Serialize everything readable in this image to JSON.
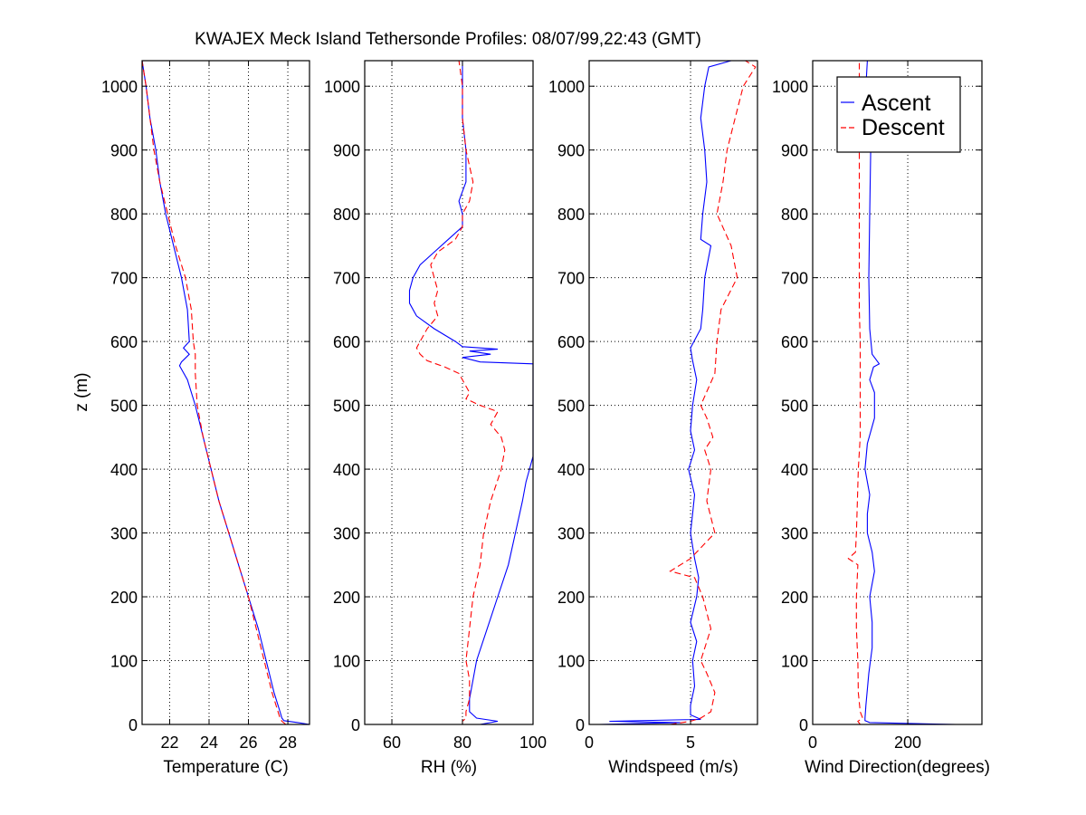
{
  "chart_data": {
    "type": "line",
    "title": "KWAJEX Meck Island Tethersonde Profiles: 08/07/99,22:43 (GMT)",
    "ylabel": "z (m)",
    "ylim": [
      0,
      1040
    ],
    "yticks": [
      0,
      100,
      200,
      300,
      400,
      500,
      600,
      700,
      800,
      900,
      1000
    ],
    "grid": true,
    "legend": {
      "placement": "top-right of last panel",
      "entries": [
        {
          "name": "Ascent",
          "color": "#0000ff",
          "style": "solid"
        },
        {
          "name": "Descent",
          "color": "#ff0000",
          "style": "dashed"
        }
      ]
    },
    "panels": [
      {
        "id": "temperature",
        "xlabel": "Temperature (C)",
        "xlim": [
          20.6,
          29.1
        ],
        "xticks": [
          22,
          24,
          26,
          28
        ],
        "series": [
          {
            "name": "Ascent",
            "color": "#0000ff",
            "style": "solid",
            "z": [
              0,
              3,
              6,
              10,
              20,
              50,
              100,
              150,
              200,
              250,
              300,
              350,
              400,
              450,
              500,
              540,
              562,
              568,
              580,
              590,
              600,
              650,
              700,
              750,
              800,
              850,
              900,
              950,
              1000,
              1040
            ],
            "values": [
              29.1,
              28.5,
              27.8,
              27.7,
              27.6,
              27.3,
              26.9,
              26.5,
              26.0,
              25.5,
              25.0,
              24.5,
              24.1,
              23.7,
              23.3,
              22.9,
              22.5,
              22.6,
              23.0,
              22.7,
              23.0,
              22.9,
              22.6,
              22.2,
              21.8,
              21.5,
              21.3,
              21.0,
              20.8,
              20.6
            ]
          },
          {
            "name": "Descent",
            "color": "#ff0000",
            "style": "dashed",
            "z": [
              0,
              5,
              10,
              20,
              50,
              100,
              150,
              200,
              250,
              300,
              350,
              400,
              450,
              500,
              550,
              580,
              600,
              650,
              700,
              750,
              800,
              850,
              900,
              950,
              1000,
              1040
            ],
            "values": [
              27.9,
              27.7,
              27.6,
              27.5,
              27.2,
              26.8,
              26.4,
              26.0,
              25.5,
              25.0,
              24.5,
              24.1,
              23.7,
              23.4,
              23.3,
              23.3,
              23.2,
              23.1,
              22.8,
              22.3,
              21.9,
              21.5,
              21.2,
              21.0,
              20.8,
              20.6
            ]
          }
        ]
      },
      {
        "id": "rh",
        "xlabel": "RH (%)",
        "xlim": [
          52.3,
          100
        ],
        "xticks": [
          60,
          80,
          100
        ],
        "series": [
          {
            "name": "Ascent",
            "color": "#0000ff",
            "style": "solid",
            "z": [
              0,
              5,
              10,
              20,
              40,
              70,
              100,
              150,
              200,
              250,
              300,
              350,
              380,
              400,
              420,
              440,
              500,
              560,
              565,
              568,
              575,
              580,
              585,
              588,
              592,
              600,
              620,
              640,
              660,
              680,
              700,
              720,
              740,
              760,
              780,
              800,
              820,
              850,
              900,
              950,
              1000,
              1040
            ],
            "values": [
              85,
              90,
              84,
              82,
              82,
              83,
              84,
              87,
              90,
              93,
              95,
              97,
              98,
              99,
              100,
              100,
              100,
              100,
              100,
              85,
              80,
              88,
              82,
              90,
              80,
              78,
              72,
              67,
              65,
              65,
              66,
              68,
              72,
              76,
              80,
              80,
              79,
              81,
              81,
              80,
              80,
              80
            ]
          },
          {
            "name": "Descent",
            "color": "#ff0000",
            "style": "dashed",
            "z": [
              0,
              5,
              10,
              20,
              40,
              70,
              100,
              150,
              200,
              250,
              300,
              350,
              400,
              430,
              450,
              470,
              490,
              500,
              510,
              520,
              530,
              540,
              550,
              560,
              570,
              580,
              590,
              600,
              620,
              640,
              660,
              680,
              700,
              720,
              740,
              760,
              780,
              800,
              820,
              850,
              900,
              950,
              1000,
              1040
            ],
            "values": [
              80,
              80,
              81,
              81,
              82,
              82,
              81,
              82,
              83,
              85,
              86,
              88,
              91,
              92,
              91,
              88,
              90,
              85,
              81,
              82,
              81,
              80,
              79,
              75,
              70,
              68,
              67,
              68,
              70,
              73,
              72,
              73,
              72,
              71,
              73,
              78,
              80,
              80,
              82,
              83,
              81,
              80,
              80,
              79
            ]
          }
        ]
      },
      {
        "id": "windspeed",
        "xlabel": "Windspeed (m/s)",
        "xlim": [
          0,
          8.3
        ],
        "xticks": [
          0,
          5
        ],
        "series": [
          {
            "name": "Ascent",
            "color": "#0000ff",
            "style": "solid",
            "z": [
              0,
              3,
              5,
              8,
              15,
              30,
              60,
              100,
              130,
              160,
              200,
              230,
              260,
              300,
              330,
              360,
              400,
              430,
              460,
              500,
              540,
              570,
              590,
              620,
              650,
              700,
              750,
              760,
              800,
              850,
              900,
              950,
              1000,
              1030,
              1040
            ],
            "values": [
              0.5,
              4.5,
              1.0,
              5.5,
              5.0,
              5.0,
              5.2,
              5.1,
              5.3,
              5.0,
              5.3,
              5.4,
              5.2,
              5.0,
              5.1,
              5.2,
              4.9,
              5.2,
              5.0,
              5.1,
              5.3,
              5.1,
              5.0,
              5.5,
              5.6,
              5.7,
              6.0,
              5.5,
              5.6,
              5.8,
              5.7,
              5.5,
              5.7,
              5.9,
              7.0
            ]
          },
          {
            "name": "Descent",
            "color": "#ff0000",
            "style": "dashed",
            "z": [
              0,
              5,
              10,
              20,
              50,
              80,
              100,
              150,
              200,
              230,
              240,
              260,
              300,
              350,
              400,
              430,
              450,
              480,
              500,
              550,
              600,
              650,
              700,
              750,
              800,
              850,
              900,
              950,
              1000,
              1030,
              1040
            ],
            "values": [
              4.0,
              5.0,
              5.5,
              6.0,
              6.2,
              5.8,
              5.5,
              6.0,
              5.6,
              5.2,
              4.0,
              5.0,
              6.2,
              5.8,
              6.0,
              5.7,
              6.1,
              5.8,
              5.5,
              6.2,
              6.3,
              6.5,
              7.3,
              7.0,
              6.3,
              6.6,
              6.8,
              7.2,
              7.6,
              8.2,
              7.7
            ]
          }
        ]
      },
      {
        "id": "wind-direction",
        "xlabel": "Wind Direction(degrees)",
        "xlim": [
          0,
          356
        ],
        "xticks": [
          0,
          200
        ],
        "series": [
          {
            "name": "Ascent",
            "color": "#0000ff",
            "style": "solid",
            "z": [
              0,
              3,
              6,
              10,
              30,
              80,
              120,
              160,
              200,
              240,
              270,
              300,
              330,
              360,
              400,
              440,
              480,
              520,
              540,
              560,
              565,
              580,
              620,
              700,
              800,
              900,
              1000,
              1040
            ],
            "values": [
              300,
              120,
              110,
              110,
              112,
              118,
              125,
              125,
              120,
              130,
              125,
              115,
              115,
              120,
              110,
              115,
              130,
              130,
              120,
              128,
              140,
              125,
              120,
              118,
              120,
              122,
              112,
              115
            ]
          },
          {
            "name": "Descent",
            "color": "#ff0000",
            "style": "dashed",
            "z": [
              0,
              5,
              10,
              20,
              50,
              100,
              150,
              200,
              250,
              260,
              270,
              300,
              350,
              400,
              450,
              500,
              550,
              600,
              650,
              700,
              800,
              900,
              1000,
              1040
            ],
            "values": [
              100,
              95,
              105,
              100,
              96,
              95,
              92,
              92,
              95,
              75,
              90,
              92,
              94,
              96,
              100,
              100,
              100,
              100,
              98,
              98,
              98,
              98,
              98,
              98
            ]
          }
        ]
      }
    ]
  }
}
